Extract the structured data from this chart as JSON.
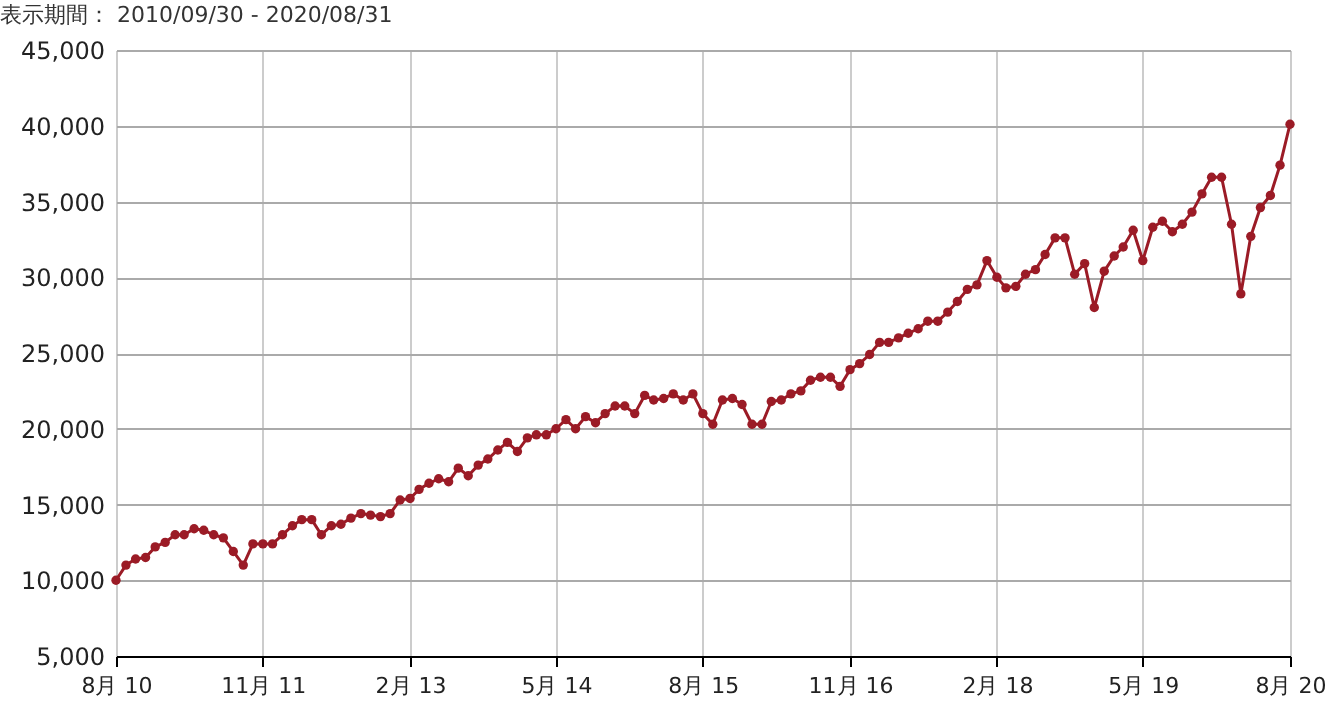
{
  "chart_data": {
    "type": "line",
    "title": "表示期間： 2010/09/30 - 2020/08/31",
    "x": [
      "2010-08",
      "2010-09",
      "2010-10",
      "2010-11",
      "2010-12",
      "2011-01",
      "2011-02",
      "2011-03",
      "2011-04",
      "2011-05",
      "2011-06",
      "2011-07",
      "2011-08",
      "2011-09",
      "2011-10",
      "2011-11",
      "2011-12",
      "2012-01",
      "2012-02",
      "2012-03",
      "2012-04",
      "2012-05",
      "2012-06",
      "2012-07",
      "2012-08",
      "2012-09",
      "2012-10",
      "2012-11",
      "2012-12",
      "2013-01",
      "2013-02",
      "2013-03",
      "2013-04",
      "2013-05",
      "2013-06",
      "2013-07",
      "2013-08",
      "2013-09",
      "2013-10",
      "2013-11",
      "2013-12",
      "2014-01",
      "2014-02",
      "2014-03",
      "2014-04",
      "2014-05",
      "2014-06",
      "2014-07",
      "2014-08",
      "2014-09",
      "2014-10",
      "2014-11",
      "2014-12",
      "2015-01",
      "2015-02",
      "2015-03",
      "2015-04",
      "2015-05",
      "2015-06",
      "2015-07",
      "2015-08",
      "2015-09",
      "2015-10",
      "2015-11",
      "2015-12",
      "2016-01",
      "2016-02",
      "2016-03",
      "2016-04",
      "2016-05",
      "2016-06",
      "2016-07",
      "2016-08",
      "2016-09",
      "2016-10",
      "2016-11",
      "2016-12",
      "2017-01",
      "2017-02",
      "2017-03",
      "2017-04",
      "2017-05",
      "2017-06",
      "2017-07",
      "2017-08",
      "2017-09",
      "2017-10",
      "2017-11",
      "2017-12",
      "2018-01",
      "2018-02",
      "2018-03",
      "2018-04",
      "2018-05",
      "2018-06",
      "2018-07",
      "2018-08",
      "2018-09",
      "2018-10",
      "2018-11",
      "2018-12",
      "2019-01",
      "2019-02",
      "2019-03",
      "2019-04",
      "2019-05",
      "2019-06",
      "2019-07",
      "2019-08",
      "2019-09",
      "2019-10",
      "2019-11",
      "2019-12",
      "2020-01",
      "2020-02",
      "2020-03",
      "2020-04",
      "2020-05",
      "2020-06",
      "2020-07",
      "2020-08"
    ],
    "series": [
      {
        "color": "#9b1b26",
        "values": [
          10000,
          11000,
          11400,
          11500,
          12200,
          12500,
          13000,
          13000,
          13400,
          13300,
          13000,
          12800,
          11900,
          11000,
          12400,
          12400,
          12400,
          13000,
          13600,
          14000,
          14000,
          13000,
          13600,
          13700,
          14100,
          14400,
          14300,
          14200,
          14400,
          15300,
          15400,
          16000,
          16400,
          16700,
          16500,
          17400,
          16900,
          17600,
          18000,
          18600,
          19100,
          18500,
          19400,
          19600,
          19600,
          20000,
          20600,
          20000,
          20800,
          20400,
          21000,
          21500,
          21500,
          21000,
          22200,
          21900,
          22000,
          22300,
          21900,
          22300,
          21000,
          20300,
          21900,
          22000,
          21600,
          20300,
          20300,
          21800,
          21900,
          22300,
          22500,
          23200,
          23400,
          23400,
          22800,
          23900,
          24300,
          24900,
          25700,
          25700,
          26000,
          26300,
          26600,
          27100,
          27100,
          27700,
          28400,
          29200,
          29500,
          31100,
          30000,
          29300,
          29400,
          30200,
          30500,
          31500,
          32600,
          32600,
          30200,
          30900,
          28000,
          30400,
          31400,
          32000,
          33100,
          31100,
          33300,
          33700,
          33000,
          33500,
          34300,
          35500,
          36600,
          36600,
          33500,
          28900,
          32700,
          34600,
          35400,
          37400,
          40100
        ]
      }
    ],
    "xlim": [
      "2010-08",
      "2020-08"
    ],
    "xticks": [
      {
        "value": "2010-08",
        "label": "8月 10"
      },
      {
        "value": "2011-11",
        "label": "11月 11"
      },
      {
        "value": "2013-02",
        "label": "2月 13"
      },
      {
        "value": "2014-05",
        "label": "5月 14"
      },
      {
        "value": "2015-08",
        "label": "8月 15"
      },
      {
        "value": "2016-11",
        "label": "11月 16"
      },
      {
        "value": "2018-02",
        "label": "2月 18"
      },
      {
        "value": "2019-05",
        "label": "5月 19"
      },
      {
        "value": "2020-08",
        "label": "8月 20"
      }
    ],
    "ylim": [
      5000,
      45000
    ],
    "yticks": [
      {
        "value": 5000,
        "label": "5,000"
      },
      {
        "value": 10000,
        "label": "10,000"
      },
      {
        "value": 15000,
        "label": "15,000"
      },
      {
        "value": 20000,
        "label": "20,000"
      },
      {
        "value": 25000,
        "label": "25,000"
      },
      {
        "value": 30000,
        "label": "30,000"
      },
      {
        "value": 35000,
        "label": "35,000"
      },
      {
        "value": 40000,
        "label": "40,000"
      },
      {
        "value": 45000,
        "label": "45,000"
      }
    ],
    "grid": true,
    "marker": "circle",
    "line_style": "solid"
  }
}
